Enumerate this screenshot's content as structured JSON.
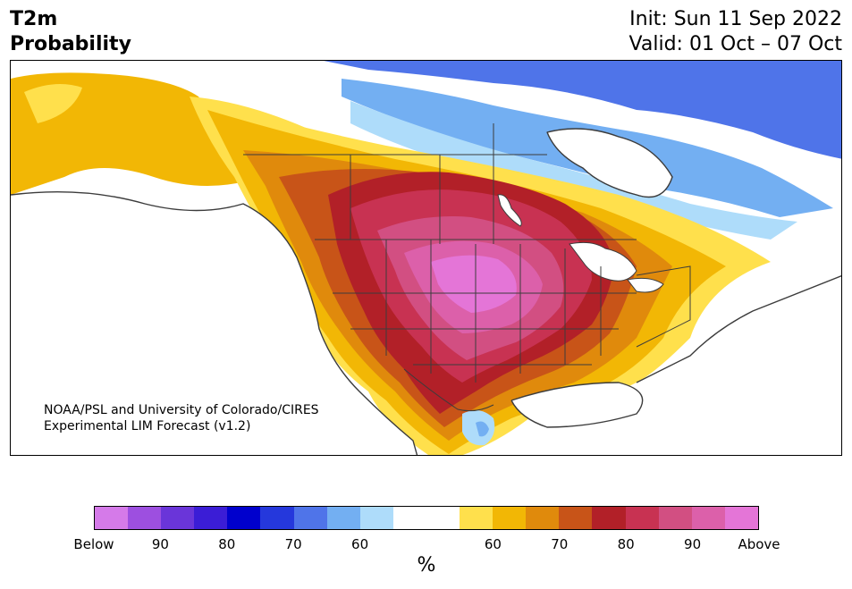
{
  "title": {
    "line1": "T2m",
    "line2": "Probability"
  },
  "dates": {
    "init": "Init: Sun 11 Sep 2022",
    "valid": "Valid: 01 Oct – 07 Oct"
  },
  "credit": {
    "line1": "NOAA/PSL and University of Colorado/CIRES",
    "line2": "Experimental LIM Forecast (v1.2)"
  },
  "colorbar": {
    "colors": [
      "#d57ae9",
      "#9d4fe0",
      "#6a35d9",
      "#3b1dd6",
      "#0000cd",
      "#2538dc",
      "#4f74e9",
      "#73aff2",
      "#aedcfa",
      "#ffffff",
      "#ffffff",
      "#ffe04c",
      "#f2b705",
      "#e08a0c",
      "#c85418",
      "#b22028",
      "#c83252",
      "#d24f82",
      "#dc60aa",
      "#e475d7"
    ],
    "ticks": [
      "Below",
      "90",
      "80",
      "70",
      "60",
      "60",
      "70",
      "80",
      "90",
      "Above"
    ],
    "unit": "%"
  },
  "colors": {
    "land_base": "#ffffff",
    "borders": "#3c3c3c"
  }
}
